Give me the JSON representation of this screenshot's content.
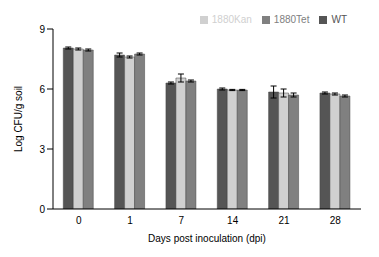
{
  "chart_data": {
    "type": "bar",
    "categories": [
      "0",
      "1",
      "7",
      "14",
      "21",
      "28"
    ],
    "x_label": "Days post inoculation (dpi)",
    "y_label": "Log CFU/g soil",
    "ylim": [
      0,
      9
    ],
    "yticks": [
      0,
      3,
      6,
      9
    ],
    "grid": false,
    "legend": "top-right",
    "series": [
      {
        "name": "WT",
        "color": "#555555",
        "values": [
          8.05,
          7.7,
          6.3,
          6.0,
          5.85,
          5.8
        ],
        "errors": [
          0.05,
          0.1,
          0.05,
          0.05,
          0.3,
          0.05
        ]
      },
      {
        "name": "1880Kan",
        "color": "#d0d0d0",
        "values": [
          8.0,
          7.6,
          6.55,
          5.95,
          5.8,
          5.75
        ],
        "errors": [
          0.05,
          0.05,
          0.2,
          0.03,
          0.2,
          0.05
        ]
      },
      {
        "name": "1880Tet",
        "color": "#808080",
        "values": [
          7.95,
          7.75,
          6.4,
          5.95,
          5.7,
          5.65
        ],
        "errors": [
          0.05,
          0.05,
          0.05,
          0.03,
          0.1,
          0.05
        ]
      }
    ]
  }
}
